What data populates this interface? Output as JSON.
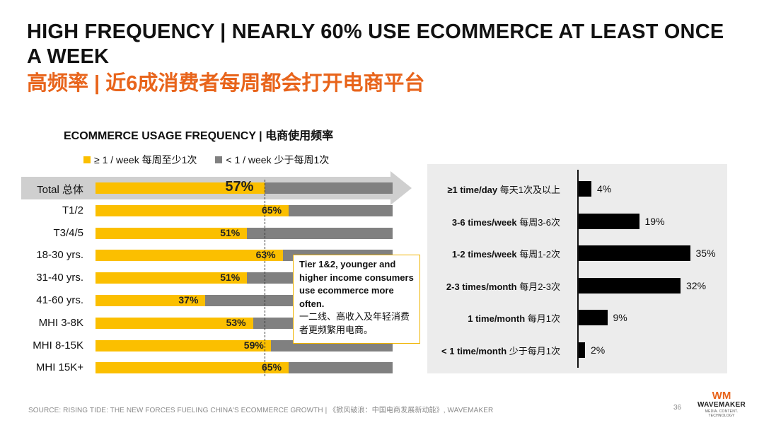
{
  "title": "HIGH FREQUENCY | NEARLY 60% USE ECOMMERCE AT LEAST ONCE A WEEK",
  "subtitle": "高频率 | 近6成消费者每周都会打开电商平台",
  "colors": {
    "accent": "#e8641b",
    "weekly": "#fbbf00",
    "less": "#808080",
    "bar_black": "#000000",
    "panel": "#ececec"
  },
  "chart_data": [
    {
      "type": "bar",
      "orientation": "horizontal",
      "stacked": true,
      "title": "ECOMMERCE USAGE FREQUENCY | 电商使用频率",
      "legend": [
        {
          "label": "≥ 1 /  week 每周至少1次",
          "color": "#fbbf00"
        },
        {
          "label": "< 1 / week 少于每周1次",
          "color": "#808080"
        }
      ],
      "categories": [
        "Total 总体",
        "T1/2",
        "T3/4/5",
        "18-30 yrs.",
        "31-40 yrs.",
        "41-60 yrs.",
        "MHI 3-8K",
        "MHI 8-15K",
        "MHI 15K+"
      ],
      "series": [
        {
          "name": "≥ 1 /  week 每周至少1次",
          "values": [
            57,
            65,
            51,
            63,
            51,
            37,
            53,
            59,
            65
          ]
        },
        {
          "name": "< 1 / week 少于每周1次",
          "values": [
            43,
            35,
            49,
            37,
            49,
            63,
            47,
            41,
            35
          ]
        }
      ],
      "data_labels": [
        "57%",
        "65%",
        "51%",
        "63%",
        "51%",
        "37%",
        "53%",
        "59%",
        "65%"
      ],
      "reference_line": 57,
      "xlim": [
        0,
        100
      ]
    },
    {
      "type": "bar",
      "orientation": "horizontal",
      "categories": [
        "≥1 time/day 每天1次及以上",
        "3-6 times/week 每周3-6次",
        "1-2 times/week 每周1-2次",
        "2-3 times/month 每月2-3次",
        "1 time/month 每月1次",
        "< 1 time/month 少于每月1次"
      ],
      "categories_en": [
        "≥1 time/day",
        "3-6 times/week",
        "1-2 times/week",
        "2-3 times/month",
        "1 time/month",
        "< 1 time/month"
      ],
      "categories_cn": [
        "每天1次及以上",
        "每周3-6次",
        "每周1-2次",
        "每月2-3次",
        "每月1次",
        "少于每月1次"
      ],
      "values": [
        4,
        19,
        35,
        32,
        9,
        2
      ],
      "data_labels": [
        "4%",
        "19%",
        "35%",
        "32%",
        "9%",
        "2%"
      ],
      "xlim": [
        0,
        40
      ]
    }
  ],
  "callout": {
    "en": "Tier 1&2, younger and higher income consumers use ecommerce more often.",
    "cn": "一二线、高收入及年轻消费者更频繁用电商。"
  },
  "footer": {
    "source": "SOURCE: RISING TIDE: THE NEW FORCES FUELING CHINA'S ECOMMERCE GROWTH | 《掀风破浪：中国电商发展新动能》, WAVEMAKER",
    "page": "36"
  },
  "logo": {
    "mark": "WM",
    "name": "WAVEMAKER",
    "tagline": "MEDIA. CONTENT. TECHNOLOGY"
  }
}
